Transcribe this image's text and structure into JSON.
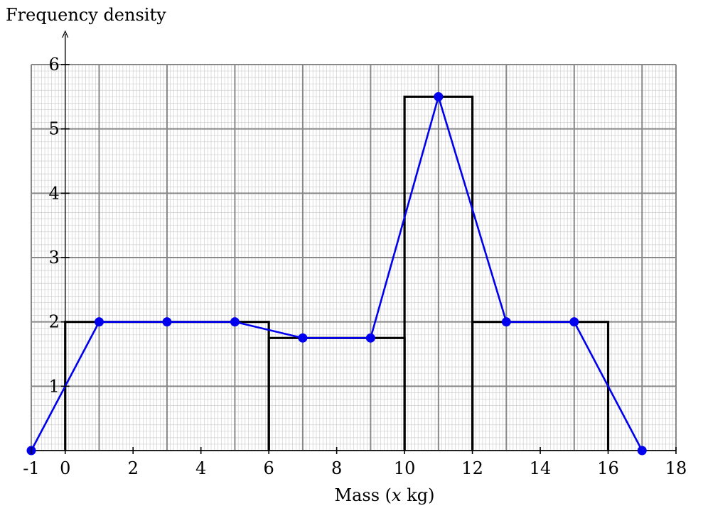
{
  "chart_data": {
    "type": "histogram with frequency polygon",
    "ylabel": "Frequency density",
    "xlabel": "Mass (x kg)",
    "xlabel_prefix": "Mass (",
    "xlabel_var": "x",
    "xlabel_suffix": " kg)",
    "xlim": [
      -1,
      18
    ],
    "ylim": [
      0,
      6
    ],
    "grid": true,
    "x_ticks": [
      "-1",
      "0",
      "2",
      "4",
      "6",
      "8",
      "10",
      "12",
      "14",
      "16",
      "18"
    ],
    "y_ticks": [
      "1",
      "2",
      "3",
      "4",
      "5",
      "6"
    ],
    "histogram": {
      "bins": [
        {
          "from": 0,
          "to": 6,
          "density": 2
        },
        {
          "from": 6,
          "to": 10,
          "density": 1.75
        },
        {
          "from": 10,
          "to": 12,
          "density": 5.5
        },
        {
          "from": 12,
          "to": 16,
          "density": 2
        }
      ]
    },
    "polygon": {
      "points": [
        {
          "x": -1,
          "y": 0
        },
        {
          "x": 1,
          "y": 2
        },
        {
          "x": 3,
          "y": 2
        },
        {
          "x": 5,
          "y": 2
        },
        {
          "x": 7,
          "y": 1.75
        },
        {
          "x": 9,
          "y": 1.75
        },
        {
          "x": 11,
          "y": 5.5
        },
        {
          "x": 13,
          "y": 2
        },
        {
          "x": 15,
          "y": 2
        },
        {
          "x": 17,
          "y": 0
        }
      ]
    },
    "colors": {
      "histogram": "#000000",
      "polygon": "#0000ee",
      "major_grid": "#888888",
      "minor_grid": "#cfcfcf"
    }
  }
}
